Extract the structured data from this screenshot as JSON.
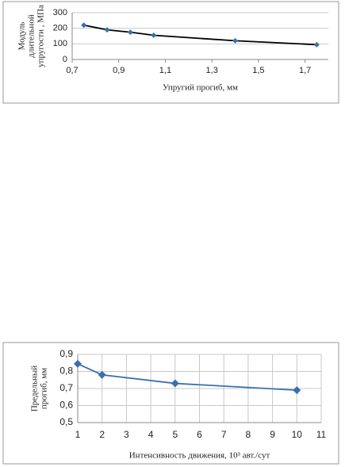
{
  "chart_data": [
    {
      "type": "line",
      "x_label": "Упругий прогиб, мм",
      "y_label": [
        "Модуль",
        "длительной",
        "упругости , МПа"
      ],
      "series": [
        {
          "color": "#3a6fb0",
          "line_color": "#000000",
          "x": [
            0.75,
            0.85,
            0.95,
            1.05,
            1.4,
            1.75
          ],
          "values": [
            220,
            190,
            175,
            155,
            120,
            95
          ]
        }
      ],
      "xlim": [
        0.7,
        1.8
      ],
      "xticks": [
        {
          "value": 0.7,
          "label": "0,7"
        },
        {
          "value": 0.9,
          "label": "0,9"
        },
        {
          "value": 1.1,
          "label": "1,1"
        },
        {
          "value": 1.3,
          "label": "1,3"
        },
        {
          "value": 1.5,
          "label": "1,5"
        },
        {
          "value": 1.7,
          "label": "1,7"
        }
      ],
      "ylim": [
        0,
        300
      ],
      "yticks": [
        0,
        100,
        200,
        300
      ],
      "grid": "y"
    },
    {
      "type": "line",
      "x_label": "Интенсивность движения, 10³ авт./сут",
      "y_label": [
        "Предельный",
        "прогиб, мм"
      ],
      "series": [
        {
          "color": "#3a6fb0",
          "line_color": "#3a6fb0",
          "x": [
            1,
            2,
            5,
            10
          ],
          "values": [
            0.845,
            0.78,
            0.73,
            0.69
          ]
        }
      ],
      "xlim": [
        1,
        11
      ],
      "xticks": [
        1,
        2,
        3,
        4,
        5,
        6,
        7,
        8,
        9,
        10,
        11
      ],
      "ylim": [
        0.5,
        0.9
      ],
      "yticks": [
        {
          "value": 0.5,
          "label": "0,5"
        },
        {
          "value": 0.6,
          "label": "0,6"
        },
        {
          "value": 0.7,
          "label": "0,7"
        },
        {
          "value": 0.8,
          "label": "0,8"
        },
        {
          "value": 0.9,
          "label": "0,9"
        }
      ],
      "grid": "both"
    }
  ]
}
